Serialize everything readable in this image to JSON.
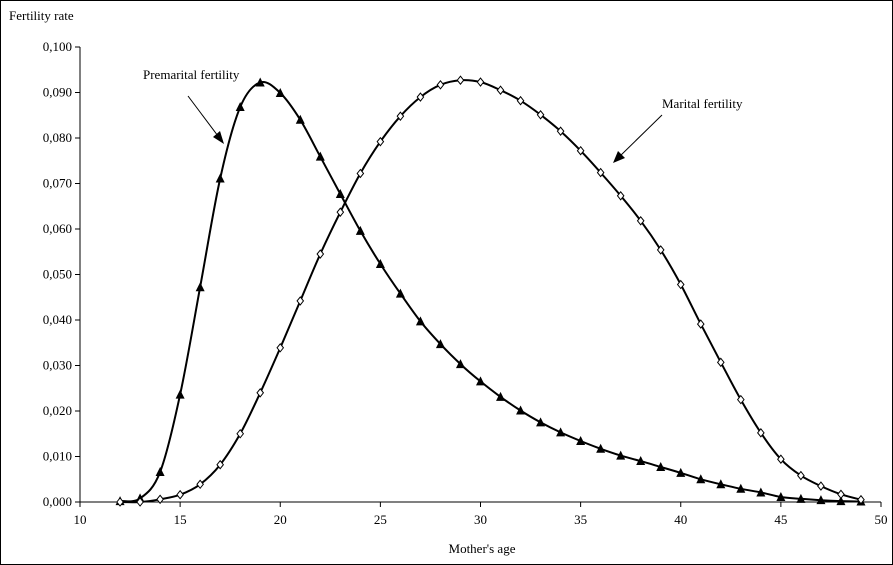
{
  "chart_data": {
    "type": "line",
    "ylabel": "Fertility rate",
    "xlabel": "Mother's age",
    "xlim": [
      10,
      50
    ],
    "ylim": [
      0,
      0.1
    ],
    "x_ticks": [
      "10",
      "15",
      "20",
      "25",
      "30",
      "35",
      "40",
      "45",
      "50"
    ],
    "y_ticks": [
      "0,000",
      "0,010",
      "0,020",
      "0,030",
      "0,040",
      "0,050",
      "0,060",
      "0,070",
      "0,080",
      "0,090",
      "0,100"
    ],
    "grid": false,
    "legend": "none",
    "annotations": [
      "Premarital fertility",
      "Marital fertility"
    ],
    "series": [
      {
        "name": "Premarital fertility",
        "marker": "filled-triangle",
        "color": "#000000",
        "x": [
          12,
          13,
          14,
          15,
          16,
          17,
          18,
          19,
          20,
          21,
          22,
          23,
          24,
          25,
          26,
          27,
          28,
          29,
          30,
          31,
          32,
          33,
          34,
          35,
          36,
          37,
          38,
          39,
          40,
          41,
          42,
          43,
          44,
          45,
          46,
          47,
          48,
          49
        ],
        "y": [
          0.0002,
          0.0008,
          0.0066,
          0.0236,
          0.0472,
          0.0711,
          0.0868,
          0.0922,
          0.0899,
          0.084,
          0.0759,
          0.0677,
          0.0596,
          0.0523,
          0.0458,
          0.0397,
          0.0347,
          0.0303,
          0.0265,
          0.0231,
          0.0201,
          0.0175,
          0.0153,
          0.0134,
          0.0117,
          0.0102,
          0.009,
          0.0077,
          0.0064,
          0.005,
          0.0039,
          0.0029,
          0.0021,
          0.0011,
          0.0007,
          0.0004,
          0.0002,
          0.0001
        ]
      },
      {
        "name": "Marital fertility",
        "marker": "open-diamond",
        "color": "#000000",
        "x": [
          12,
          13,
          14,
          15,
          16,
          17,
          18,
          19,
          20,
          21,
          22,
          23,
          24,
          25,
          26,
          27,
          28,
          29,
          30,
          31,
          32,
          33,
          34,
          35,
          36,
          37,
          38,
          39,
          40,
          41,
          42,
          43,
          44,
          45,
          46,
          47,
          48,
          49
        ],
        "y": [
          0.0,
          0.0,
          0.0006,
          0.0016,
          0.0039,
          0.0082,
          0.015,
          0.024,
          0.0339,
          0.0442,
          0.0545,
          0.0637,
          0.0722,
          0.0792,
          0.0848,
          0.089,
          0.0917,
          0.0927,
          0.0923,
          0.0905,
          0.0882,
          0.0851,
          0.0815,
          0.0772,
          0.0724,
          0.0673,
          0.0618,
          0.0554,
          0.0478,
          0.0391,
          0.0307,
          0.0225,
          0.0152,
          0.0094,
          0.0058,
          0.0035,
          0.0017,
          0.0005
        ]
      }
    ]
  }
}
